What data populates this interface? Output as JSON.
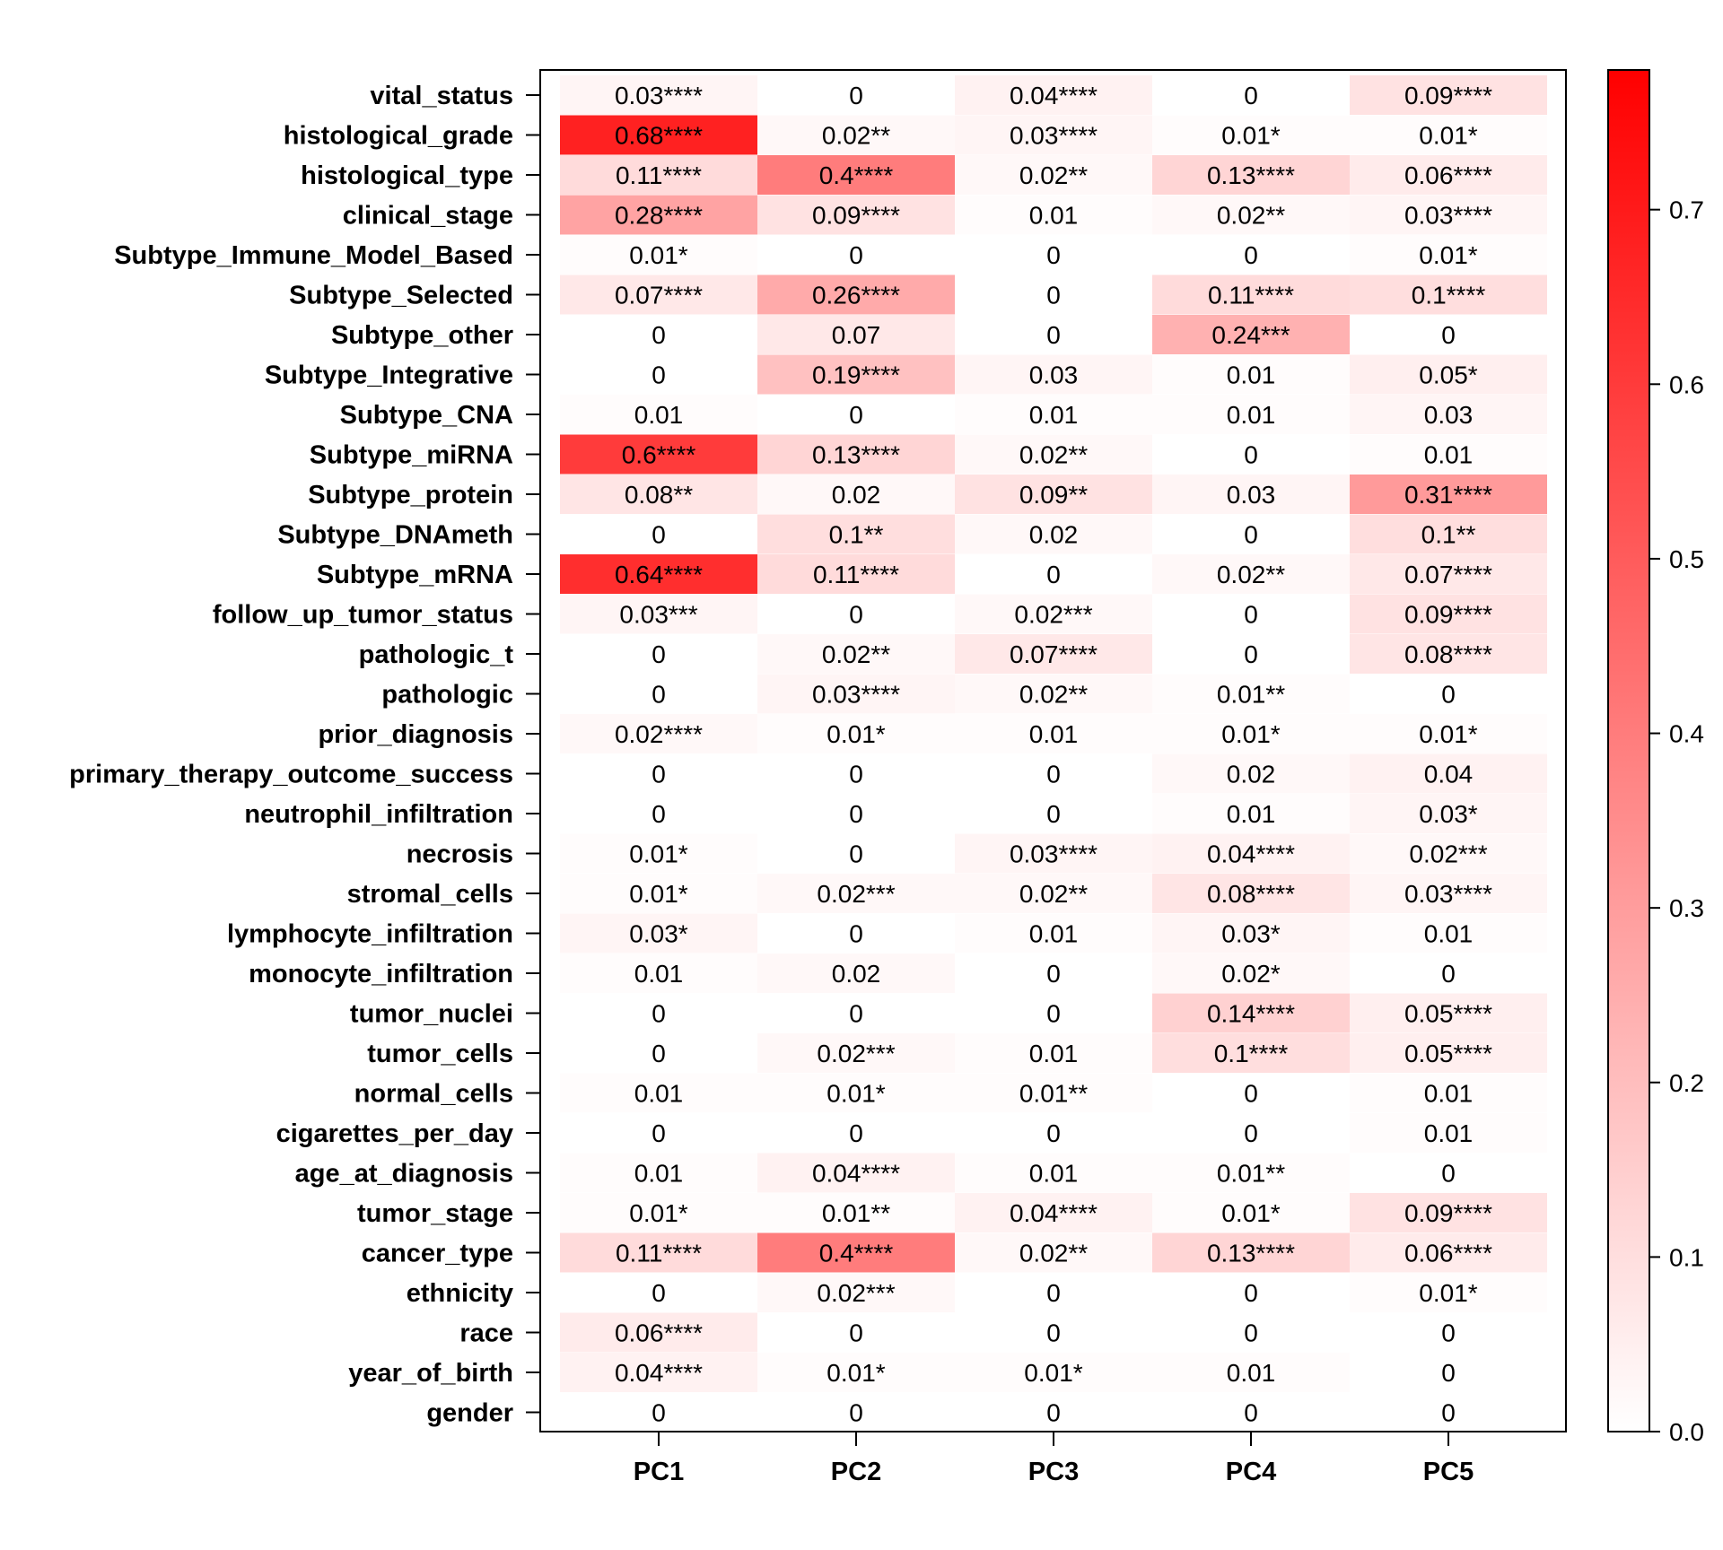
{
  "chart_data": {
    "type": "heatmap",
    "title": "",
    "xlabel": "",
    "ylabel": "",
    "columns": [
      "PC1",
      "PC2",
      "PC3",
      "PC4",
      "PC5"
    ],
    "rows": [
      "vital_status",
      "histological_grade",
      "histological_type",
      "clinical_stage",
      "Subtype_Immune_Model_Based",
      "Subtype_Selected",
      "Subtype_other",
      "Subtype_Integrative",
      "Subtype_CNA",
      "Subtype_miRNA",
      "Subtype_protein",
      "Subtype_DNAmeth",
      "Subtype_mRNA",
      "follow_up_tumor_status",
      "pathologic_t",
      "pathologic",
      "prior_diagnosis",
      "primary_therapy_outcome_success",
      "neutrophil_infiltration",
      "necrosis",
      "stromal_cells",
      "lymphocyte_infiltration",
      "monocyte_infiltration",
      "tumor_nuclei",
      "tumor_cells",
      "normal_cells",
      "cigarettes_per_day",
      "age_at_diagnosis",
      "tumor_stage",
      "cancer_type",
      "ethnicity",
      "race",
      "year_of_birth",
      "gender"
    ],
    "values": [
      [
        0.03,
        0,
        0.04,
        0,
        0.09
      ],
      [
        0.68,
        0.02,
        0.03,
        0.01,
        0.01
      ],
      [
        0.11,
        0.4,
        0.02,
        0.13,
        0.06
      ],
      [
        0.28,
        0.09,
        0.01,
        0.02,
        0.03
      ],
      [
        0.01,
        0,
        0,
        0,
        0.01
      ],
      [
        0.07,
        0.26,
        0,
        0.11,
        0.1
      ],
      [
        0,
        0.07,
        0,
        0.24,
        0
      ],
      [
        0,
        0.19,
        0.03,
        0.01,
        0.05
      ],
      [
        0.01,
        0,
        0.01,
        0.01,
        0.03
      ],
      [
        0.6,
        0.13,
        0.02,
        0,
        0.01
      ],
      [
        0.08,
        0.02,
        0.09,
        0.03,
        0.31
      ],
      [
        0,
        0.1,
        0.02,
        0,
        0.1
      ],
      [
        0.64,
        0.11,
        0,
        0.02,
        0.07
      ],
      [
        0.03,
        0,
        0.02,
        0,
        0.09
      ],
      [
        0,
        0.02,
        0.07,
        0,
        0.08
      ],
      [
        0,
        0.03,
        0.02,
        0.01,
        0
      ],
      [
        0.02,
        0.01,
        0.01,
        0.01,
        0.01
      ],
      [
        0,
        0,
        0,
        0.02,
        0.04
      ],
      [
        0,
        0,
        0,
        0.01,
        0.03
      ],
      [
        0.01,
        0,
        0.03,
        0.04,
        0.02
      ],
      [
        0.01,
        0.02,
        0.02,
        0.08,
        0.03
      ],
      [
        0.03,
        0,
        0.01,
        0.03,
        0.01
      ],
      [
        0.01,
        0.02,
        0,
        0.02,
        0
      ],
      [
        0,
        0,
        0,
        0.14,
        0.05
      ],
      [
        0,
        0.02,
        0.01,
        0.1,
        0.05
      ],
      [
        0.01,
        0.01,
        0.01,
        0,
        0.01
      ],
      [
        0,
        0,
        0,
        0,
        0.01
      ],
      [
        0.01,
        0.04,
        0.01,
        0.01,
        0
      ],
      [
        0.01,
        0.01,
        0.04,
        0.01,
        0.09
      ],
      [
        0.11,
        0.4,
        0.02,
        0.13,
        0.06
      ],
      [
        0,
        0.02,
        0,
        0,
        0.01
      ],
      [
        0.06,
        0,
        0,
        0,
        0
      ],
      [
        0.04,
        0.01,
        0.01,
        0.01,
        0
      ],
      [
        0,
        0,
        0,
        0,
        0
      ]
    ],
    "labels": [
      [
        "0.03****",
        "0",
        "0.04****",
        "0",
        "0.09****"
      ],
      [
        "0.68****",
        "0.02**",
        "0.03****",
        "0.01*",
        "0.01*"
      ],
      [
        "0.11****",
        "0.4****",
        "0.02**",
        "0.13****",
        "0.06****"
      ],
      [
        "0.28****",
        "0.09****",
        "0.01",
        "0.02**",
        "0.03****"
      ],
      [
        "0.01*",
        "0",
        "0",
        "0",
        "0.01*"
      ],
      [
        "0.07****",
        "0.26****",
        "0",
        "0.11****",
        "0.1****"
      ],
      [
        "0",
        "0.07",
        "0",
        "0.24***",
        "0"
      ],
      [
        "0",
        "0.19****",
        "0.03",
        "0.01",
        "0.05*"
      ],
      [
        "0.01",
        "0",
        "0.01",
        "0.01",
        "0.03"
      ],
      [
        "0.6****",
        "0.13****",
        "0.02**",
        "0",
        "0.01"
      ],
      [
        "0.08**",
        "0.02",
        "0.09**",
        "0.03",
        "0.31****"
      ],
      [
        "0",
        "0.1**",
        "0.02",
        "0",
        "0.1**"
      ],
      [
        "0.64****",
        "0.11****",
        "0",
        "0.02**",
        "0.07****"
      ],
      [
        "0.03***",
        "0",
        "0.02***",
        "0",
        "0.09****"
      ],
      [
        "0",
        "0.02**",
        "0.07****",
        "0",
        "0.08****"
      ],
      [
        "0",
        "0.03****",
        "0.02**",
        "0.01**",
        "0"
      ],
      [
        "0.02****",
        "0.01*",
        "0.01",
        "0.01*",
        "0.01*"
      ],
      [
        "0",
        "0",
        "0",
        "0.02",
        "0.04"
      ],
      [
        "0",
        "0",
        "0",
        "0.01",
        "0.03*"
      ],
      [
        "0.01*",
        "0",
        "0.03****",
        "0.04****",
        "0.02***"
      ],
      [
        "0.01*",
        "0.02***",
        "0.02**",
        "0.08****",
        "0.03****"
      ],
      [
        "0.03*",
        "0",
        "0.01",
        "0.03*",
        "0.01"
      ],
      [
        "0.01",
        "0.02",
        "0",
        "0.02*",
        "0"
      ],
      [
        "0",
        "0",
        "0",
        "0.14****",
        "0.05****"
      ],
      [
        "0",
        "0.02***",
        "0.01",
        "0.1****",
        "0.05****"
      ],
      [
        "0.01",
        "0.01*",
        "0.01**",
        "0",
        "0.01"
      ],
      [
        "0",
        "0",
        "0",
        "0",
        "0.01"
      ],
      [
        "0.01",
        "0.04****",
        "0.01",
        "0.01**",
        "0"
      ],
      [
        "0.01*",
        "0.01**",
        "0.04****",
        "0.01*",
        "0.09****"
      ],
      [
        "0.11****",
        "0.4****",
        "0.02**",
        "0.13****",
        "0.06****"
      ],
      [
        "0",
        "0.02***",
        "0",
        "0",
        "0.01*"
      ],
      [
        "0.06****",
        "0",
        "0",
        "0",
        "0"
      ],
      [
        "0.04****",
        "0.01*",
        "0.01*",
        "0.01",
        "0"
      ],
      [
        "0",
        "0",
        "0",
        "0",
        "0"
      ]
    ],
    "colorbar": {
      "min": 0.0,
      "max": 0.78,
      "ticks": [
        0.0,
        0.1,
        0.2,
        0.3,
        0.4,
        0.5,
        0.6,
        0.7
      ],
      "tick_labels": [
        "0.0",
        "0.1",
        "0.2",
        "0.3",
        "0.4",
        "0.5",
        "0.6",
        "0.7"
      ],
      "color_low": "#ffffff",
      "color_high": "#ff0000"
    }
  }
}
